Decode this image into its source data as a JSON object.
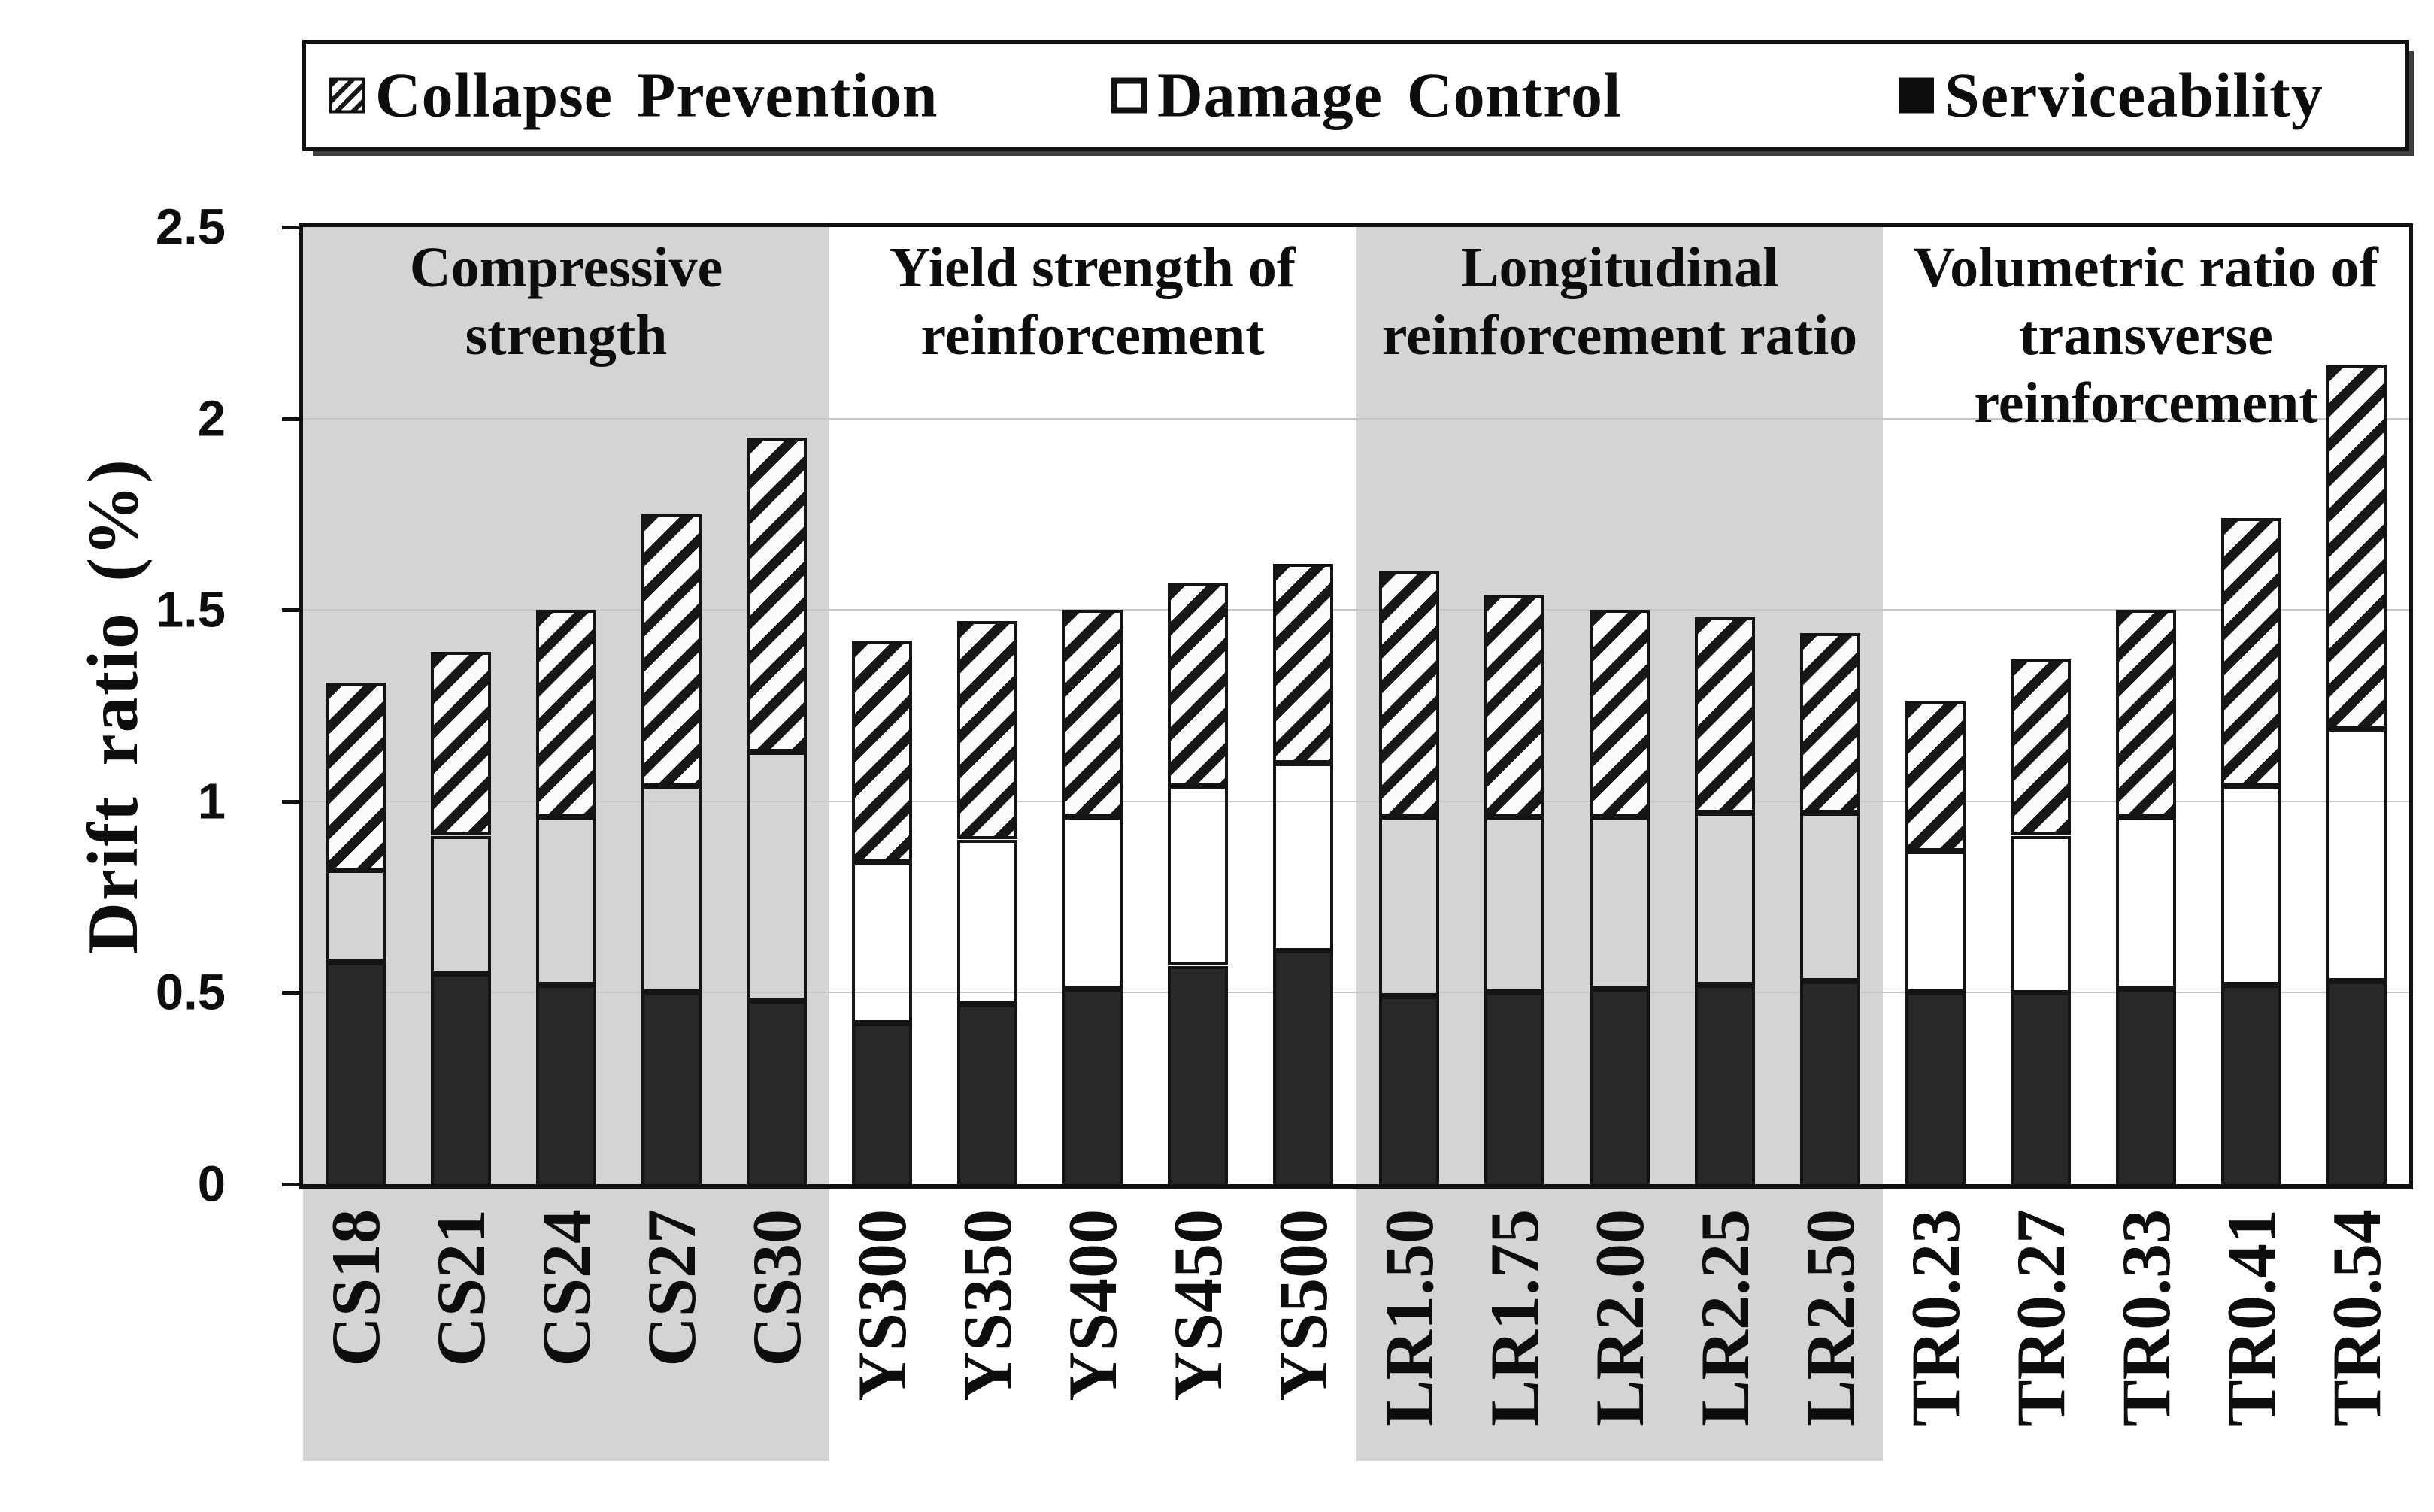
{
  "legend": {
    "items": [
      {
        "label": "Collapse Prevention",
        "marker": "hatched-square"
      },
      {
        "label": "Damage Control",
        "marker": "white-square"
      },
      {
        "label": "Serviceability",
        "marker": "black-square"
      }
    ]
  },
  "y_axis": {
    "title": "Drift ratio (%)",
    "min": 0,
    "max": 2.5,
    "tick_values": [
      0,
      0.5,
      1,
      1.5,
      2,
      2.5
    ],
    "tick_labels": [
      "0",
      "0.5",
      "1",
      "1.5",
      "2",
      "2.5"
    ]
  },
  "chart_data": {
    "type": "bar",
    "subtype": "stacked",
    "ylabel": "Drift ratio (%)",
    "ylim": [
      0,
      2.5
    ],
    "grid": "horizontal",
    "gridline_step": 0.5,
    "legend_position": "top",
    "categories": [
      "CS18",
      "CS21",
      "CS24",
      "CS27",
      "CS30",
      "YS300",
      "YS350",
      "YS400",
      "YS450",
      "YS500",
      "LR1.50",
      "LR1.75",
      "LR2.00",
      "LR2.25",
      "LR2.50",
      "TR0.23",
      "TR0.27",
      "TR0.33",
      "TR0.41",
      "TR0.54"
    ],
    "series": [
      {
        "name": "Serviceability",
        "fill": "solid-black",
        "values": [
          0.58,
          0.55,
          0.52,
          0.5,
          0.48,
          0.42,
          0.47,
          0.51,
          0.57,
          0.61,
          0.49,
          0.5,
          0.51,
          0.52,
          0.53,
          0.5,
          0.5,
          0.51,
          0.52,
          0.53
        ]
      },
      {
        "name": "Damage Control",
        "fill": "white-outline",
        "values": [
          0.24,
          0.36,
          0.44,
          0.54,
          0.65,
          0.42,
          0.43,
          0.45,
          0.47,
          0.49,
          0.47,
          0.46,
          0.45,
          0.45,
          0.44,
          0.37,
          0.41,
          0.45,
          0.52,
          0.66
        ]
      },
      {
        "name": "Collapse Prevention",
        "fill": "diagonal-hatch",
        "values": [
          0.49,
          0.48,
          0.54,
          0.71,
          0.82,
          0.58,
          0.57,
          0.54,
          0.53,
          0.52,
          0.64,
          0.58,
          0.54,
          0.51,
          0.47,
          0.39,
          0.46,
          0.54,
          0.7,
          0.95
        ]
      }
    ],
    "stack_totals": [
      1.31,
      1.39,
      1.5,
      1.75,
      1.95,
      1.42,
      1.47,
      1.5,
      1.57,
      1.62,
      1.6,
      1.54,
      1.5,
      1.48,
      1.44,
      1.26,
      1.37,
      1.5,
      1.74,
      2.14
    ],
    "groups": [
      {
        "title": "Compressive strength",
        "categories": [
          "CS18",
          "CS21",
          "CS24",
          "CS27",
          "CS30"
        ],
        "shaded": true
      },
      {
        "title": "Yield strength of\nreinforcement",
        "categories": [
          "YS300",
          "YS350",
          "YS400",
          "YS450",
          "YS500"
        ],
        "shaded": false
      },
      {
        "title": "Longitudinal\nreinforcement ratio",
        "categories": [
          "LR1.50",
          "LR1.75",
          "LR2.00",
          "LR2.25",
          "LR2.50"
        ],
        "shaded": true
      },
      {
        "title": "Volumetric ratio of\ntransverse reinforcement",
        "categories": [
          "TR0.23",
          "TR0.27",
          "TR0.33",
          "TR0.41",
          "TR0.54"
        ],
        "shaded": false
      }
    ]
  },
  "colors": {
    "background": "#ffffff",
    "band": "#d4d4d4",
    "gridline": "#c6c6c6",
    "frame": "#111111",
    "bar_outline": "#141414",
    "serviceability": "#282828",
    "hatch_dark": "#171717",
    "hatch_light": "#fcfcfc",
    "shadow": "#3f3f3f"
  }
}
